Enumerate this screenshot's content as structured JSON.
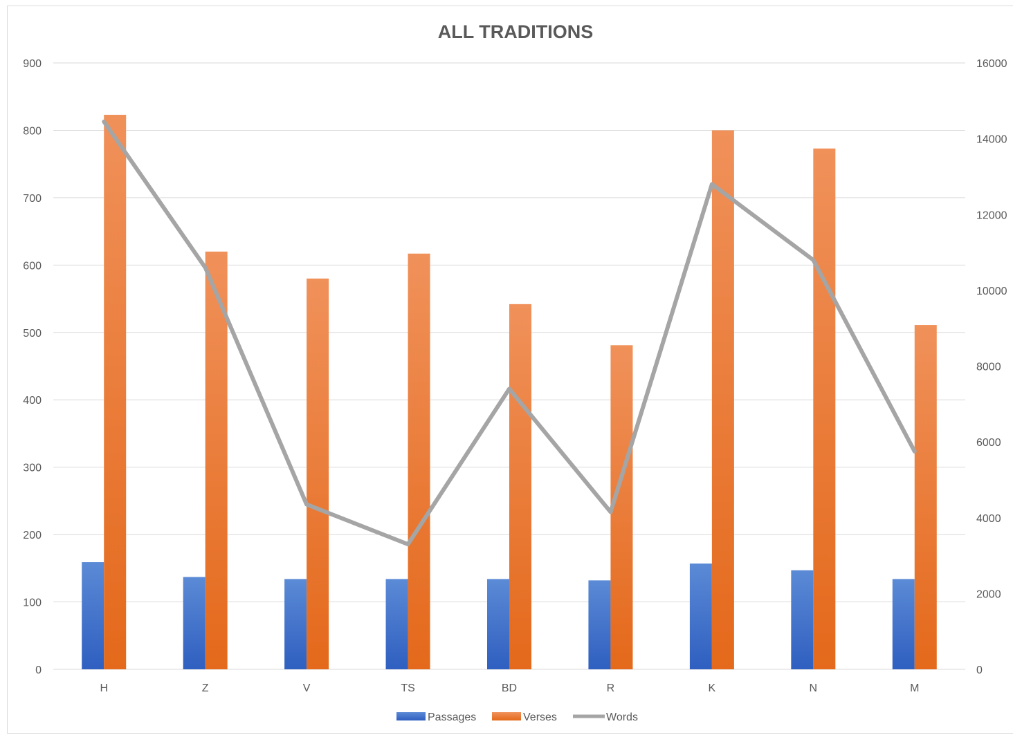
{
  "chart_data": {
    "type": "bar",
    "title": "ALL TRADITIONS",
    "categories": [
      "H",
      "Z",
      "V",
      "TS",
      "BD",
      "R",
      "K",
      "N",
      "M"
    ],
    "series": [
      {
        "name": "Passages",
        "type": "bar",
        "axis": "left",
        "color": "#4472C4",
        "values": [
          159,
          137,
          134,
          134,
          134,
          132,
          157,
          147,
          134
        ]
      },
      {
        "name": "Verses",
        "type": "bar",
        "axis": "left",
        "color": "#ED7D31",
        "values": [
          823,
          620,
          580,
          617,
          542,
          481,
          800,
          773,
          511
        ]
      },
      {
        "name": "Words",
        "type": "line",
        "axis": "right",
        "color": "#A5A5A5",
        "values": [
          14450,
          10600,
          4350,
          3300,
          7400,
          4150,
          12800,
          10800,
          5750
        ]
      }
    ],
    "y_left": {
      "min": 0,
      "max": 900,
      "step": 100,
      "tick_labels": [
        "0",
        "100",
        "200",
        "300",
        "400",
        "500",
        "600",
        "700",
        "800",
        "900"
      ]
    },
    "y_right": {
      "min": 0,
      "max": 16000,
      "step": 2000,
      "tick_labels": [
        "0",
        "2000",
        "4000",
        "6000",
        "8000",
        "10000",
        "12000",
        "14000",
        "16000"
      ]
    },
    "grid": true,
    "legend": "bottom"
  }
}
